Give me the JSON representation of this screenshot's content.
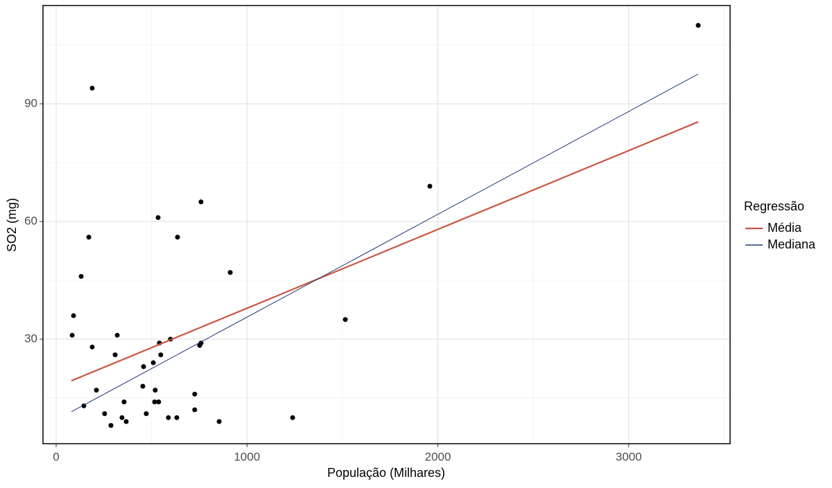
{
  "chart_data": {
    "type": "scatter",
    "xlabel": "População (Milhares)",
    "ylabel": "SO2 (mg)",
    "x": [
      3364,
      189,
      1958,
      759,
      534,
      171,
      636,
      912,
      131,
      91,
      1515,
      84,
      320,
      599,
      541,
      759,
      752,
      189,
      309,
      548,
      509,
      458,
      454,
      211,
      519,
      726,
      356,
      516,
      537,
      145,
      726,
      254,
      472,
      345,
      588,
      632,
      1239,
      367,
      854,
      287
    ],
    "values": [
      110,
      94,
      69,
      65,
      61,
      56,
      56,
      47,
      46,
      36,
      35,
      31,
      31,
      30,
      29,
      29,
      28.4,
      28,
      26,
      26,
      24,
      23,
      18,
      17,
      17,
      16,
      14,
      14,
      14,
      13,
      12,
      11,
      11,
      10,
      10,
      10,
      10,
      9,
      9,
      8
    ],
    "color": "#000000",
    "legend_title": "Regressão",
    "legend": "right",
    "lines": [
      {
        "name": "Média",
        "color": "#c9553f",
        "x": [
          80,
          3364
        ],
        "values": [
          19.4,
          85.4
        ]
      },
      {
        "name": "Mediana",
        "color": "#1f3a6e",
        "x": [
          80,
          3364
        ],
        "values": [
          11.5,
          97.6
        ]
      }
    ],
    "xlim": [
      -69,
      3531
    ],
    "ylim": [
      3.35,
      115.06
    ],
    "xticks": [
      0,
      1000,
      2000,
      3000
    ],
    "yticks": [
      30,
      60,
      90
    ],
    "minor_xticks": [
      500,
      1500,
      2500,
      3500
    ],
    "minor_yticks": [
      15,
      45,
      75,
      105
    ],
    "grid": true
  }
}
